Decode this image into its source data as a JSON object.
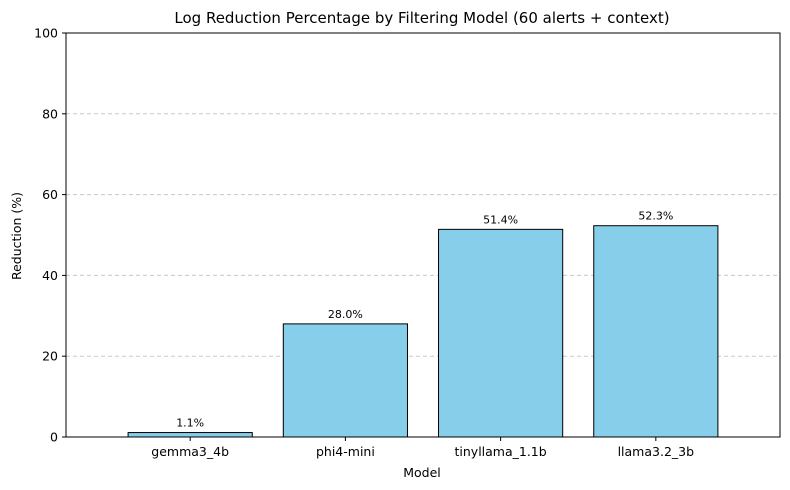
{
  "chart_data": {
    "type": "bar",
    "title": "Log Reduction Percentage by Filtering Model (60 alerts + context)",
    "xlabel": "Model",
    "ylabel": "Reduction (%)",
    "categories": [
      "gemma3_4b",
      "phi4-mini",
      "tinyllama_1.1b",
      "llama3.2_3b"
    ],
    "values": [
      1.1,
      28.0,
      51.4,
      52.3
    ],
    "data_labels": [
      "1.1%",
      "28.0%",
      "51.4%",
      "52.3%"
    ],
    "ylim": [
      0,
      100
    ],
    "yticks": [
      0,
      20,
      40,
      60,
      80,
      100
    ],
    "grid": "y-axis dashed",
    "legend": "none"
  },
  "colors": {
    "bar_fill": "#87ceeb",
    "bar_edge": "#000000",
    "grid": "#c8c8c8",
    "axis": "#000000"
  }
}
